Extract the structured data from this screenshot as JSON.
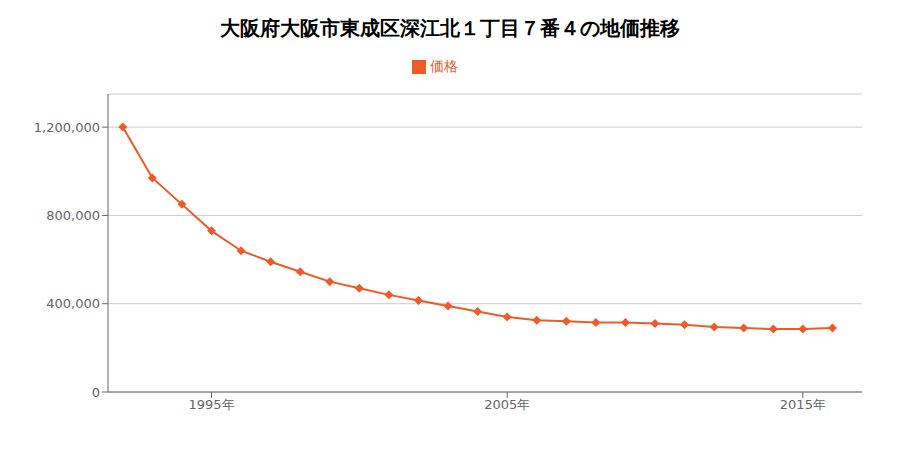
{
  "chart_data": {
    "type": "line",
    "title": "大阪府大阪市東成区深江北１丁目７番４の地価推移",
    "x": [
      1992,
      1993,
      1994,
      1995,
      1996,
      1997,
      1998,
      1999,
      2000,
      2001,
      2002,
      2003,
      2004,
      2005,
      2006,
      2007,
      2008,
      2009,
      2010,
      2011,
      2012,
      2013,
      2014,
      2015,
      2016
    ],
    "series": [
      {
        "name": "価格",
        "color": "#f05a28",
        "marker": "diamond",
        "values": [
          1200000,
          970000,
          850000,
          730000,
          640000,
          590000,
          545000,
          500000,
          470000,
          440000,
          415000,
          390000,
          365000,
          340000,
          325000,
          320000,
          315000,
          315000,
          310000,
          305000,
          295000,
          290000,
          285000,
          285000,
          290000
        ]
      }
    ],
    "xlim": [
      1991.5,
      2017
    ],
    "xticks": [
      {
        "value": 1995,
        "label": "1995年"
      },
      {
        "value": 2005,
        "label": "2005年"
      },
      {
        "value": 2015,
        "label": "2015年"
      }
    ],
    "ylim": [
      0,
      1350000
    ],
    "yticks": [
      0,
      {
        "value": 400000,
        "label": "400,000"
      },
      {
        "value": 800000,
        "label": "800,000"
      },
      {
        "value": 1200000,
        "label": "1,200,000"
      }
    ],
    "grid": true,
    "legend": "top"
  }
}
